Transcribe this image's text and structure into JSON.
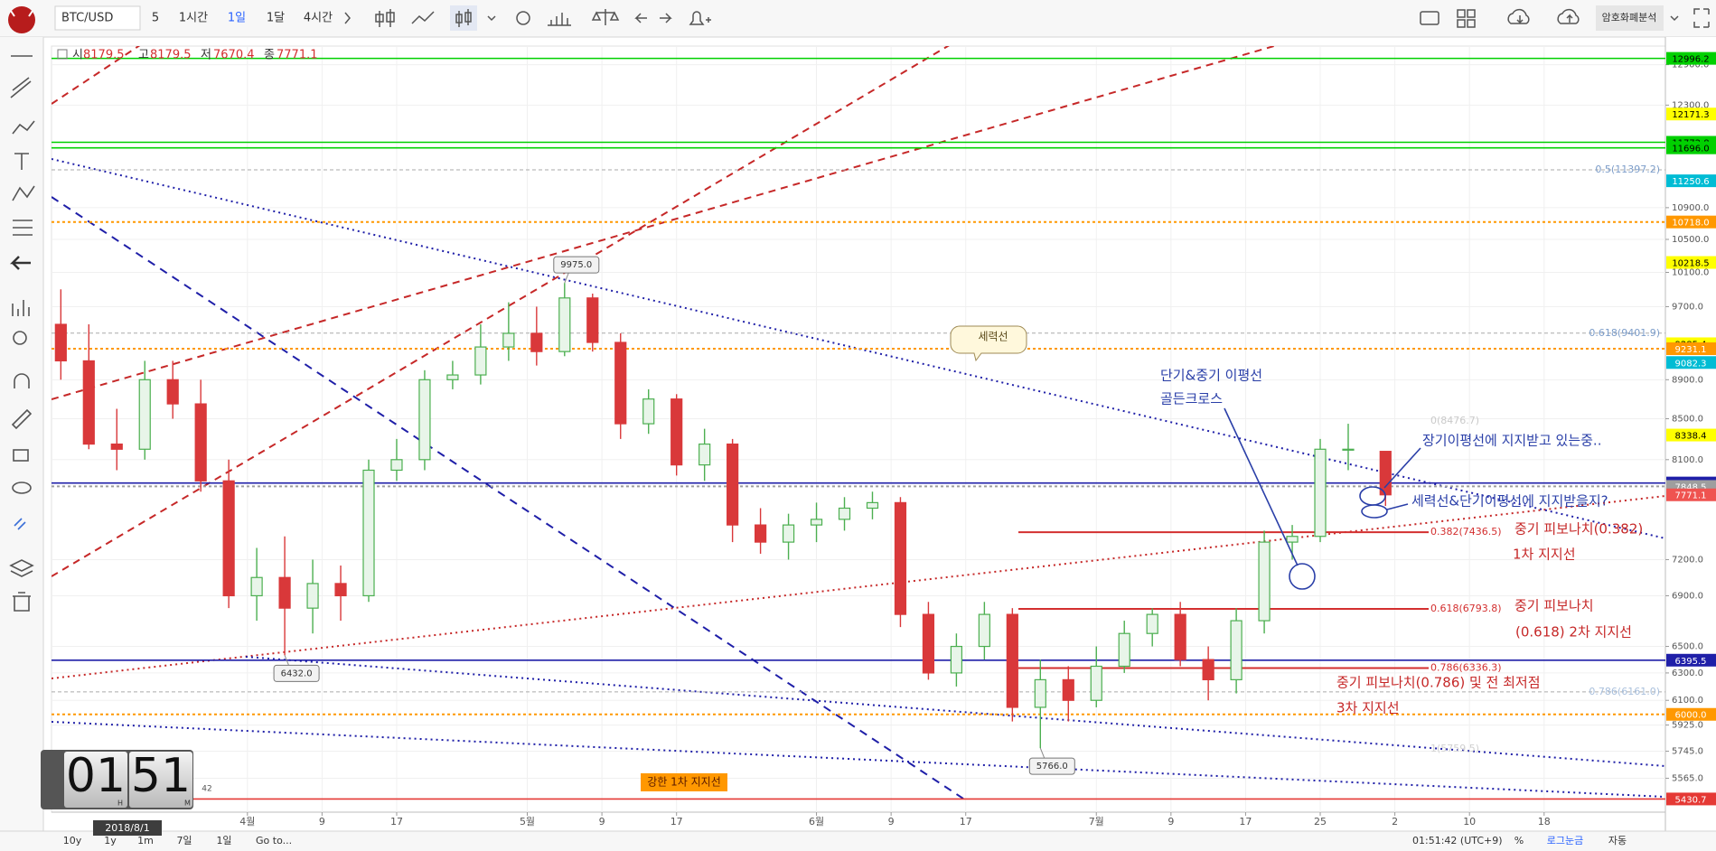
{
  "toolbar": {
    "symbol": "BTC/USD",
    "intervals": [
      "5",
      "1시간",
      "1일",
      "1달",
      "4시간"
    ],
    "analysis_button": "암호화폐분석"
  },
  "legend": {
    "open_label": "시",
    "open": 8179.5,
    "high_label": "고",
    "high": 8179.5,
    "low_label": "저",
    "low": 7670.4,
    "close_label": "종",
    "close": 7771.1
  },
  "chart_data": {
    "type": "candlestick",
    "log_scale": true,
    "grid": true,
    "up_color": "#4caf50",
    "down_color": "#d9383a",
    "x": [
      "2018-03-12",
      "2018-03-15",
      "2018-03-18",
      "2018-03-21",
      "2018-03-24",
      "2018-03-27",
      "2018-03-30",
      "2018-04-02",
      "2018-04-05",
      "2018-04-08",
      "2018-04-11",
      "2018-04-14",
      "2018-04-17",
      "2018-04-20",
      "2018-04-23",
      "2018-04-26",
      "2018-04-29",
      "2018-05-02",
      "2018-05-05",
      "2018-05-08",
      "2018-05-11",
      "2018-05-14",
      "2018-05-17",
      "2018-05-20",
      "2018-05-23",
      "2018-05-26",
      "2018-05-29",
      "2018-06-01",
      "2018-06-04",
      "2018-06-07",
      "2018-06-10",
      "2018-06-13",
      "2018-06-16",
      "2018-06-19",
      "2018-06-22",
      "2018-06-25",
      "2018-06-28",
      "2018-07-01",
      "2018-07-04",
      "2018-07-07",
      "2018-07-10",
      "2018-07-13",
      "2018-07-16",
      "2018-07-19",
      "2018-07-22",
      "2018-07-25",
      "2018-07-28",
      "2018-08-01"
    ],
    "open": [
      9500,
      9100,
      8250,
      8200,
      8900,
      8650,
      7900,
      6900,
      7050,
      6800,
      7000,
      6900,
      8000,
      8100,
      8900,
      8950,
      9250,
      9400,
      9200,
      9800,
      9300,
      8450,
      8700,
      8050,
      8250,
      7500,
      7350,
      7500,
      7550,
      7650,
      7700,
      6750,
      6300,
      6500,
      6750,
      6050,
      6250,
      6100,
      6350,
      6600,
      6750,
      6400,
      6250,
      6700,
      7350,
      7400,
      8200,
      8179.5
    ],
    "high": [
      9900,
      9500,
      8600,
      9100,
      9100,
      8900,
      8100,
      7300,
      7400,
      7200,
      7150,
      8100,
      8300,
      9000,
      9100,
      9500,
      9750,
      9700,
      9975,
      9850,
      9400,
      8800,
      8750,
      8400,
      8300,
      7650,
      7600,
      7700,
      7750,
      7800,
      7750,
      6850,
      6600,
      6850,
      6800,
      6400,
      6350,
      6500,
      6700,
      6800,
      6850,
      6500,
      6800,
      7450,
      7500,
      8300,
      8450,
      8179.5
    ],
    "low": [
      8900,
      8200,
      8000,
      8100,
      8500,
      7800,
      6800,
      6700,
      6432,
      6600,
      6700,
      6850,
      7900,
      8000,
      8800,
      8850,
      9100,
      9050,
      9150,
      9200,
      8300,
      8350,
      7950,
      7900,
      7350,
      7250,
      7200,
      7350,
      7450,
      7550,
      6650,
      6250,
      6200,
      6400,
      5950,
      5766,
      5950,
      6050,
      6300,
      6500,
      6350,
      6100,
      6150,
      6600,
      7200,
      7350,
      8000,
      7670.4
    ],
    "close": [
      9100,
      8250,
      8200,
      8900,
      8650,
      7900,
      6900,
      7050,
      6800,
      7000,
      6900,
      8000,
      8100,
      8900,
      8950,
      9250,
      9400,
      9200,
      9800,
      9300,
      8450,
      8700,
      8050,
      8250,
      7500,
      7350,
      7500,
      7550,
      7650,
      7700,
      6750,
      6300,
      6500,
      6750,
      6050,
      6250,
      6100,
      6350,
      6600,
      6750,
      6400,
      6250,
      6700,
      7350,
      7400,
      8200,
      8200,
      7771.1
    ],
    "xlim": [
      "2018-03-11",
      "2018-08-31"
    ],
    "xticks": [
      {
        "value": "2018-04-01",
        "label": "4월"
      },
      {
        "value": "2018-04-09",
        "label": "9"
      },
      {
        "value": "2018-04-17",
        "label": "17"
      },
      {
        "value": "2018-05-01",
        "label": "5월"
      },
      {
        "value": "2018-05-09",
        "label": "9"
      },
      {
        "value": "2018-05-17",
        "label": "17"
      },
      {
        "value": "2018-06-01",
        "label": "6월"
      },
      {
        "value": "2018-06-09",
        "label": "9"
      },
      {
        "value": "2018-06-17",
        "label": "17"
      },
      {
        "value": "2018-07-01",
        "label": "7월"
      },
      {
        "value": "2018-07-09",
        "label": "9"
      },
      {
        "value": "2018-07-17",
        "label": "17"
      },
      {
        "value": "2018-07-25",
        "label": "25"
      },
      {
        "value": "2018-08-02",
        "label": "2"
      },
      {
        "value": "2018-08-10",
        "label": "10"
      },
      {
        "value": "2018-08-18",
        "label": "18"
      }
    ],
    "ylim": [
      5347,
      13186
    ],
    "yticks": [
      {
        "value": 12900,
        "label": "12900.0"
      },
      {
        "value": 12300,
        "label": "12300.0"
      },
      {
        "value": 10900,
        "label": "10900.0"
      },
      {
        "value": 10500,
        "label": "10500.0"
      },
      {
        "value": 10100,
        "label": "10100.0"
      },
      {
        "value": 9700,
        "label": "9700.0"
      },
      {
        "value": 8900,
        "label": "8900.0"
      },
      {
        "value": 8500,
        "label": "8500.0"
      },
      {
        "value": 8100,
        "label": "8100.0"
      },
      {
        "value": 7200,
        "label": "7200.0"
      },
      {
        "value": 6900,
        "label": "6900.0"
      },
      {
        "value": 6500,
        "label": "6500.0"
      },
      {
        "value": 6300,
        "label": "6300.0"
      },
      {
        "value": 6100,
        "label": "6100.0"
      },
      {
        "value": 5925,
        "label": "5925.0"
      },
      {
        "value": 5745,
        "label": "5745.0"
      },
      {
        "value": 5565,
        "label": "5565.0"
      }
    ],
    "levels": [
      {
        "value": 12996.2,
        "color": "#00d000",
        "text_color": "#000000",
        "line": "solid"
      },
      {
        "value": 12171.3,
        "color": "#ffff00",
        "text_color": "#000000",
        "line": "none"
      },
      {
        "value": 11772.8,
        "color": "#00d000",
        "text_color": "#000000",
        "line": "solid"
      },
      {
        "value": 11696,
        "label": "11696.0",
        "color": "#00d000",
        "text_color": "#000000",
        "line": "solid"
      },
      {
        "value": 11250.6,
        "color": "#00bcd4",
        "text_color": "#ffffff",
        "line": "none"
      },
      {
        "value": 10718,
        "label": "10718.0",
        "color": "#ff9800",
        "text_color": "#ffffff",
        "line": "dotted"
      },
      {
        "value": 10218.5,
        "color": "#ffff00",
        "text_color": "#000000",
        "line": "none"
      },
      {
        "value": 9285.4,
        "color": "#ffff00",
        "text_color": "#000000",
        "line": "none"
      },
      {
        "value": 9231.1,
        "color": "#ff9800",
        "text_color": "#ffffff",
        "line": "dotted"
      },
      {
        "value": 9082.3,
        "color": "#00bcd4",
        "text_color": "#ffffff",
        "line": "none"
      },
      {
        "value": 8338.4,
        "color": "#ffff00",
        "text_color": "#000000",
        "line": "none"
      },
      {
        "value": 7880.3,
        "color": "#1f1fa8",
        "text_color": "#ffffff",
        "line": "solid"
      },
      {
        "value": 7848.5,
        "color": "#9e9e9e",
        "text_color": "#ffffff",
        "line": "dotted"
      },
      {
        "value": 7771.1,
        "color": "#ef5350",
        "text_color": "#ffffff",
        "line": "none"
      },
      {
        "value": 6395.5,
        "color": "#1f1fa8",
        "text_color": "#ffffff",
        "line": "solid"
      },
      {
        "value": 6000,
        "label": "6000.0",
        "color": "#ff9800",
        "text_color": "#ffffff",
        "line": "dotted"
      },
      {
        "value": 5430.7,
        "color": "#e53935",
        "text_color": "#ffffff",
        "line": "solid"
      }
    ],
    "fib_levels": [
      {
        "label": "0.5(11397.2)",
        "value": 11397.2,
        "style": "grid",
        "color": "#7b9cc9"
      },
      {
        "label": "0.618(9401.9)",
        "value": 9401.9,
        "style": "grid",
        "color": "#7b9cc9"
      },
      {
        "label": "0(8476.7)",
        "value": 8476.7,
        "style": "faint",
        "color": "#c9c9c9"
      },
      {
        "label": "0.382(7436.5)",
        "value": 7436.5,
        "style": "segment",
        "color": "#d32f2f"
      },
      {
        "label": "0.618(6793.8)",
        "value": 6793.8,
        "style": "segment",
        "color": "#d32f2f"
      },
      {
        "label": "0.786(6336.3)",
        "value": 6336.3,
        "style": "segment",
        "color": "#d32f2f"
      },
      {
        "label": "0.786(6161.0)",
        "value": 6161,
        "style": "grid",
        "color": "#a8bfdc"
      },
      {
        "label": "1(5759.5)",
        "value": 5759.5,
        "style": "faint",
        "color": "#d0d0d0"
      }
    ],
    "price_labels": [
      {
        "value": 9975,
        "label": "9975.0",
        "x": "2018-05-05",
        "side": "above"
      },
      {
        "value": 6432,
        "label": "6432.0",
        "x": "2018-04-05",
        "side": "below"
      },
      {
        "value": 5766,
        "label": "5766.0",
        "x": "2018-06-25",
        "side": "below"
      }
    ],
    "annotations": [
      "세력선",
      "단기&중기 이평선",
      "골든크로스",
      "장기이평선에 지지받고 있는중..",
      "세력선&단기이평선에 지지받을지?",
      "중기 피보나치(0.382)",
      "1차 지지선",
      "중기 피보나치",
      "(0.618) 2차 지지선",
      "중기 피보나치(0.786) 및 전 최저점",
      "3차 지지선",
      "강한 1차 지지선"
    ]
  },
  "bottom_bar": {
    "ranges": [
      "10y",
      "1y",
      "1m",
      "7일",
      "1일"
    ],
    "goto": "Go to...",
    "time": "01:51:42 (UTC+9)",
    "percent": "%",
    "log": "로그눈금",
    "auto": "자동"
  },
  "clock": {
    "hours": "01",
    "minutes": "51",
    "h": "H",
    "m": "M",
    "seconds": "42",
    "date": "2018/8/1"
  }
}
